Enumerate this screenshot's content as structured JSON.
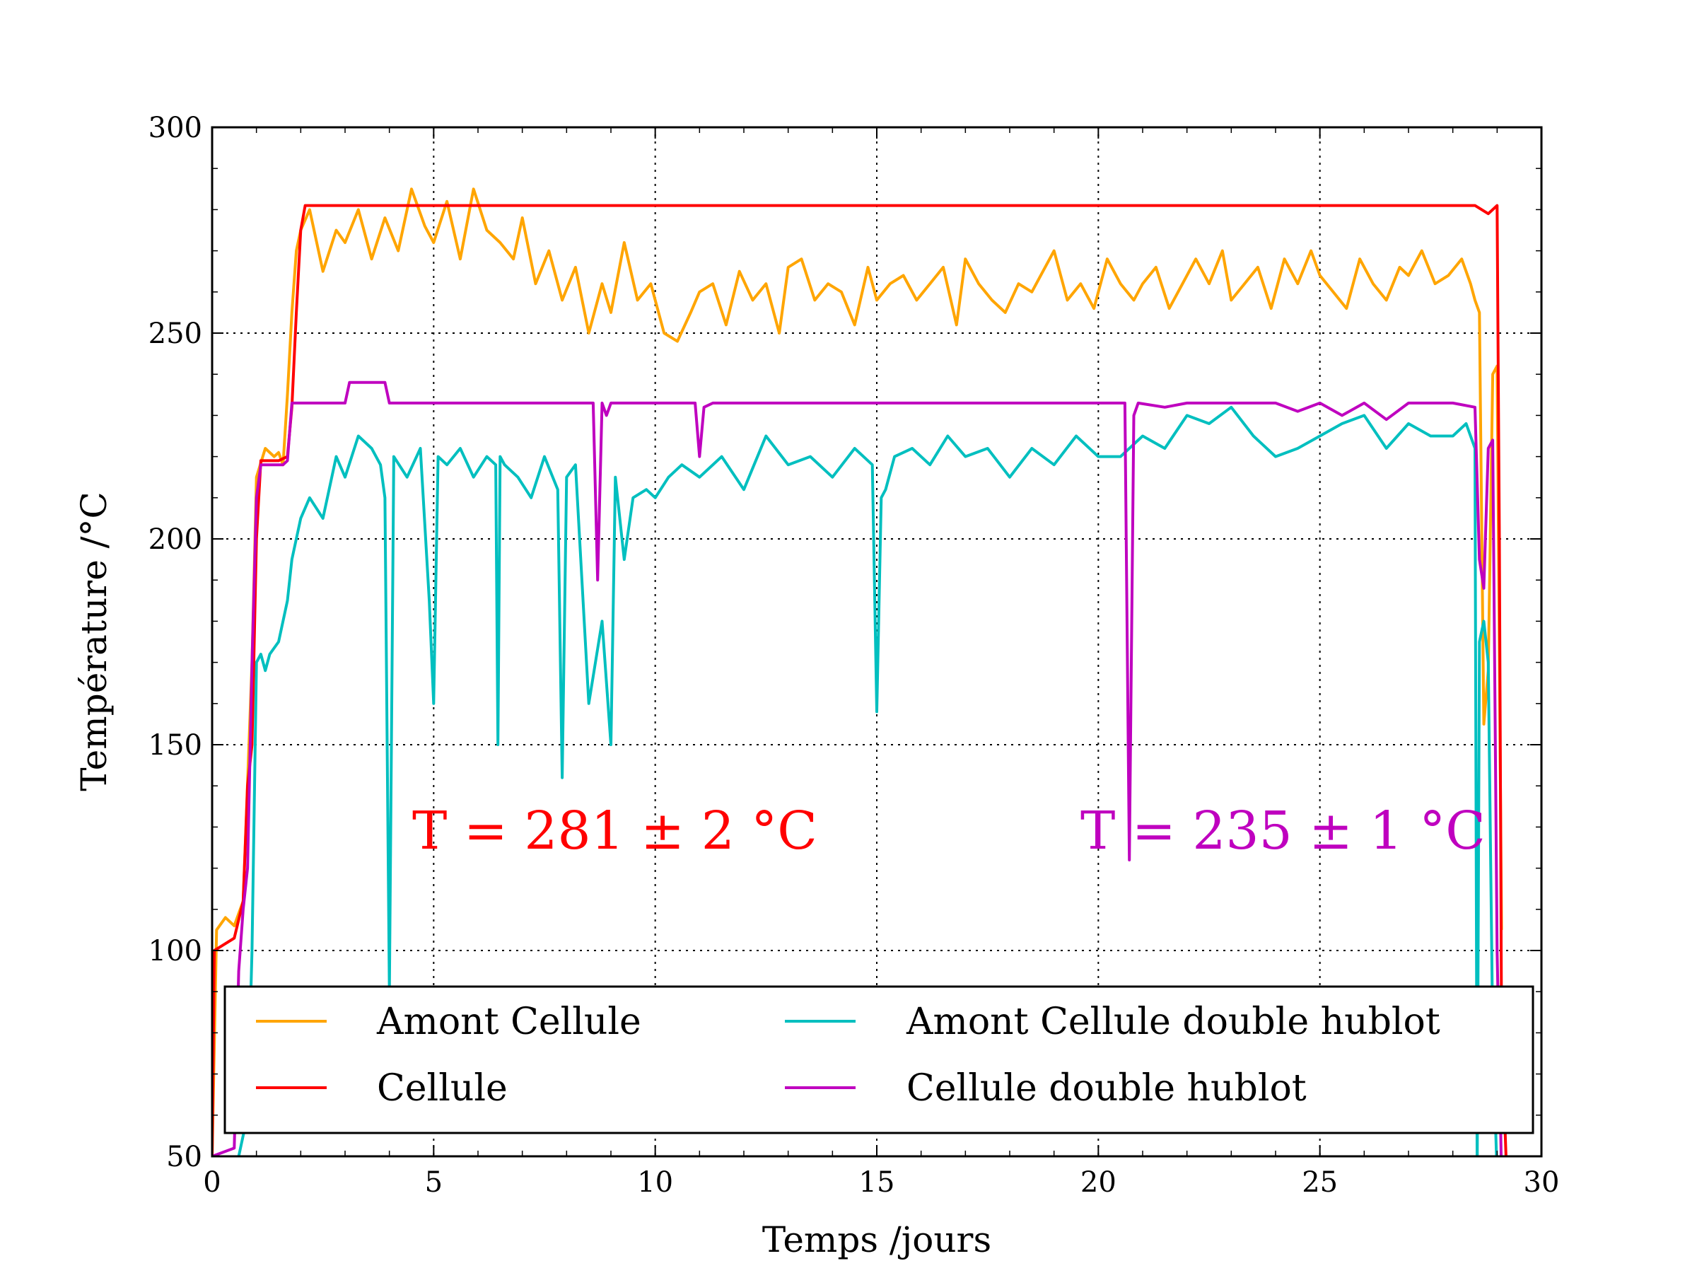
{
  "chart_data": {
    "type": "line",
    "xlabel": "Temps /jours",
    "ylabel": "Température /°C",
    "xlim": [
      0,
      30
    ],
    "ylim": [
      50,
      300
    ],
    "xticks": [
      0,
      5,
      10,
      15,
      20,
      25,
      30
    ],
    "yticks": [
      50,
      100,
      150,
      200,
      250,
      300
    ],
    "x_tick_labels": [
      "0",
      "5",
      "10",
      "15",
      "20",
      "25",
      "30"
    ],
    "y_tick_labels": [
      "50",
      "100",
      "150",
      "200",
      "250",
      "300"
    ],
    "grid": true,
    "legend_position": "lower-center",
    "series": [
      {
        "name": "Amont Cellule",
        "color": "#ffa500",
        "x": [
          0.0,
          0.1,
          0.3,
          0.5,
          0.7,
          0.9,
          1.0,
          1.2,
          1.4,
          1.5,
          1.6,
          1.7,
          1.8,
          1.9,
          2.0,
          2.2,
          2.5,
          2.8,
          3.0,
          3.3,
          3.6,
          3.9,
          4.2,
          4.5,
          4.8,
          5.0,
          5.3,
          5.6,
          5.9,
          6.2,
          6.5,
          6.8,
          7.0,
          7.3,
          7.6,
          7.9,
          8.2,
          8.5,
          8.8,
          9.0,
          9.3,
          9.6,
          9.9,
          10.2,
          10.5,
          10.8,
          11.0,
          11.3,
          11.6,
          11.9,
          12.2,
          12.5,
          12.8,
          13.0,
          13.3,
          13.6,
          13.9,
          14.2,
          14.5,
          14.8,
          15.0,
          15.3,
          15.6,
          15.9,
          16.2,
          16.5,
          16.8,
          17.0,
          17.3,
          17.6,
          17.9,
          18.2,
          18.5,
          18.8,
          19.0,
          19.3,
          19.6,
          19.9,
          20.2,
          20.5,
          20.8,
          21.0,
          21.3,
          21.6,
          21.9,
          22.2,
          22.5,
          22.8,
          23.0,
          23.3,
          23.6,
          23.9,
          24.2,
          24.5,
          24.8,
          25.0,
          25.3,
          25.6,
          25.9,
          26.2,
          26.5,
          26.8,
          27.0,
          27.3,
          27.6,
          27.9,
          28.2,
          28.4,
          28.5,
          28.6,
          28.7,
          28.8,
          28.9,
          29.0,
          29.1
        ],
        "y": [
          50,
          105,
          108,
          106,
          112,
          170,
          215,
          222,
          220,
          221,
          218,
          235,
          255,
          270,
          275,
          280,
          265,
          275,
          272,
          280,
          268,
          278,
          270,
          285,
          276,
          272,
          282,
          268,
          285,
          275,
          272,
          268,
          278,
          262,
          270,
          258,
          266,
          250,
          262,
          255,
          272,
          258,
          262,
          250,
          248,
          255,
          260,
          262,
          252,
          265,
          258,
          262,
          250,
          266,
          268,
          258,
          262,
          260,
          252,
          266,
          258,
          262,
          264,
          258,
          262,
          266,
          252,
          268,
          262,
          258,
          255,
          262,
          260,
          266,
          270,
          258,
          262,
          256,
          268,
          262,
          258,
          262,
          266,
          256,
          262,
          268,
          262,
          270,
          258,
          262,
          266,
          256,
          268,
          262,
          270,
          264,
          260,
          256,
          268,
          262,
          258,
          266,
          264,
          270,
          262,
          264,
          268,
          262,
          258,
          255,
          155,
          168,
          240,
          242,
          105
        ]
      },
      {
        "name": "Cellule",
        "color": "#ff0000",
        "x": [
          0.0,
          0.05,
          0.2,
          0.5,
          0.7,
          0.8,
          0.9,
          1.0,
          1.1,
          1.5,
          1.7,
          1.8,
          1.9,
          2.0,
          2.1,
          3.0,
          4.0,
          5.0,
          6.0,
          7.0,
          8.0,
          9.0,
          10.0,
          11.0,
          12.0,
          13.0,
          14.0,
          15.0,
          16.0,
          17.0,
          18.0,
          19.0,
          20.0,
          21.0,
          22.0,
          23.0,
          24.0,
          25.0,
          26.0,
          27.0,
          28.0,
          28.5,
          28.8,
          29.0,
          29.05,
          29.1,
          29.2
        ],
        "y": [
          50,
          100,
          101,
          103,
          112,
          140,
          150,
          200,
          219,
          219,
          220,
          232,
          255,
          275,
          281,
          281,
          281,
          281,
          281,
          281,
          281,
          281,
          281,
          281,
          281,
          281,
          281,
          281,
          281,
          281,
          281,
          281,
          281,
          281,
          281,
          281,
          281,
          281,
          281,
          281,
          281,
          281,
          279,
          281,
          200,
          80,
          50
        ]
      },
      {
        "name": "Amont Cellule double hublot",
        "color": "#00bfbf",
        "x": [
          0.0,
          0.3,
          0.6,
          0.8,
          0.9,
          1.0,
          1.1,
          1.2,
          1.3,
          1.5,
          1.7,
          1.8,
          2.0,
          2.2,
          2.5,
          2.8,
          3.0,
          3.3,
          3.6,
          3.8,
          3.9,
          4.0,
          4.1,
          4.4,
          4.7,
          4.9,
          5.0,
          5.1,
          5.3,
          5.6,
          5.9,
          6.2,
          6.4,
          6.45,
          6.5,
          6.6,
          6.9,
          7.2,
          7.5,
          7.8,
          7.9,
          8.0,
          8.2,
          8.5,
          8.8,
          9.0,
          9.1,
          9.3,
          9.5,
          9.8,
          10.0,
          10.3,
          10.6,
          11.0,
          11.5,
          12.0,
          12.5,
          13.0,
          13.5,
          14.0,
          14.5,
          14.9,
          15.0,
          15.1,
          15.2,
          15.4,
          15.8,
          16.2,
          16.6,
          17.0,
          17.5,
          18.0,
          18.5,
          19.0,
          19.5,
          20.0,
          20.5,
          21.0,
          21.5,
          22.0,
          22.5,
          23.0,
          23.5,
          24.0,
          24.5,
          25.0,
          25.5,
          26.0,
          26.5,
          27.0,
          27.5,
          28.0,
          28.3,
          28.5,
          28.55,
          28.6,
          28.7,
          28.8,
          28.9,
          29.0,
          29.1
        ],
        "y": [
          45,
          45,
          50,
          60,
          100,
          170,
          172,
          168,
          172,
          175,
          185,
          195,
          205,
          210,
          205,
          220,
          215,
          225,
          222,
          218,
          210,
          90,
          220,
          215,
          222,
          185,
          160,
          220,
          218,
          222,
          215,
          220,
          218,
          150,
          220,
          218,
          215,
          210,
          220,
          212,
          142,
          215,
          218,
          160,
          180,
          150,
          215,
          195,
          210,
          212,
          210,
          215,
          218,
          215,
          220,
          212,
          225,
          218,
          220,
          215,
          222,
          218,
          158,
          210,
          212,
          220,
          222,
          218,
          225,
          220,
          222,
          215,
          222,
          218,
          225,
          220,
          220,
          225,
          222,
          230,
          228,
          232,
          225,
          220,
          222,
          225,
          228,
          230,
          222,
          228,
          225,
          225,
          228,
          222,
          45,
          175,
          180,
          170,
          80,
          45,
          40
        ]
      },
      {
        "name": "Cellule double hublot",
        "color": "#bf00bf",
        "x": [
          0.0,
          0.5,
          0.6,
          0.7,
          0.8,
          0.9,
          1.0,
          1.1,
          1.6,
          1.7,
          1.8,
          2.0,
          2.5,
          3.0,
          3.1,
          3.8,
          3.9,
          4.0,
          5.0,
          6.0,
          7.0,
          8.0,
          8.5,
          8.6,
          8.7,
          8.8,
          8.9,
          9.0,
          10.0,
          10.8,
          10.9,
          11.0,
          11.1,
          11.3,
          12.0,
          14.0,
          16.0,
          18.0,
          20.0,
          20.6,
          20.7,
          20.8,
          20.9,
          21.5,
          22.0,
          23.0,
          24.0,
          24.5,
          25.0,
          25.5,
          26.0,
          26.5,
          27.0,
          28.0,
          28.5,
          28.6,
          28.7,
          28.8,
          28.9,
          29.0,
          29.1
        ],
        "y": [
          50,
          52,
          95,
          110,
          120,
          170,
          210,
          218,
          218,
          219,
          233,
          233,
          233,
          233,
          238,
          238,
          238,
          233,
          233,
          233,
          233,
          233,
          233,
          233,
          190,
          233,
          230,
          233,
          233,
          233,
          233,
          220,
          232,
          233,
          233,
          233,
          233,
          233,
          233,
          233,
          122,
          230,
          233,
          232,
          233,
          233,
          233,
          231,
          233,
          230,
          233,
          229,
          233,
          233,
          232,
          195,
          188,
          222,
          224,
          100,
          45
        ]
      }
    ],
    "annotations": [
      {
        "text": "T = 281 ± 2 °C",
        "color": "#ff0000"
      },
      {
        "text": "T = 235 ± 1 °C",
        "color": "#bf00bf"
      }
    ]
  }
}
